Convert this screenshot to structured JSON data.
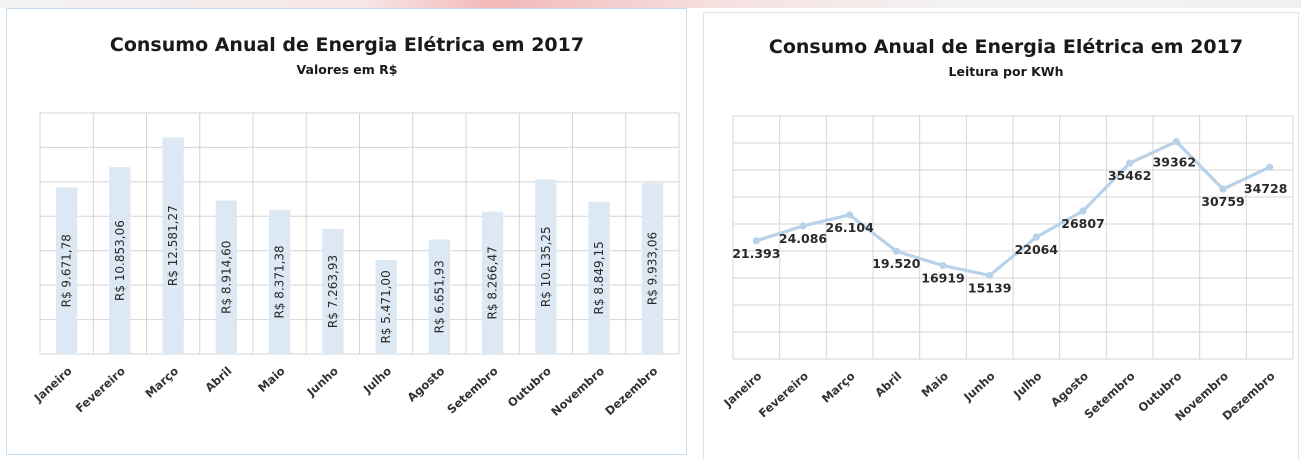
{
  "chart_data": [
    {
      "type": "bar",
      "title": "Consumo Anual de Energia Elétrica em 2017",
      "subtitle": "Valores em R$",
      "categories": [
        "Janeiro",
        "Fevereiro",
        "Março",
        "Abril",
        "Maio",
        "Junho",
        "Julho",
        "Agosto",
        "Setembro",
        "Outubro",
        "Novembro",
        "Dezembro"
      ],
      "values": [
        9671.78,
        10853.06,
        12581.27,
        8914.6,
        8371.38,
        7263.93,
        5471.0,
        6651.93,
        8266.47,
        10135.25,
        8849.15,
        9933.06
      ],
      "data_labels": [
        "R$ 9.671,78",
        "R$ 10.853,06",
        "R$ 12.581,27",
        "R$ 8.914,60",
        "R$ 8.371,38",
        "R$ 7.263,93",
        "R$ 5.471,00",
        "R$ 6.651,93",
        "R$ 8.266,47",
        "R$ 10.135,25",
        "R$ 8.849,15",
        "R$ 9.933,06"
      ],
      "ylim": [
        0,
        14000
      ],
      "grid": true,
      "bar_color": "#dde8f5"
    },
    {
      "type": "line",
      "title": "Consumo Anual de Energia Elétrica em 2017",
      "subtitle": "Leitura por KWh",
      "categories": [
        "Janeiro",
        "Fevereiro",
        "Março",
        "Abril",
        "Maio",
        "Junho",
        "Julho",
        "Agosto",
        "Setembro",
        "Outubro",
        "Novembro",
        "Dezembro"
      ],
      "values": [
        21393,
        24086,
        26104,
        19520,
        16919,
        15139,
        22064,
        26807,
        35462,
        39362,
        30759,
        34728
      ],
      "data_labels": [
        "21.393",
        "24.086",
        "26.104",
        "19.520",
        "16919",
        "15139",
        "22064",
        "26807",
        "35462",
        "39362",
        "30759",
        "34728"
      ],
      "ylim": [
        0,
        44000
      ],
      "grid": true,
      "line_color": "#b9d2ea"
    }
  ]
}
